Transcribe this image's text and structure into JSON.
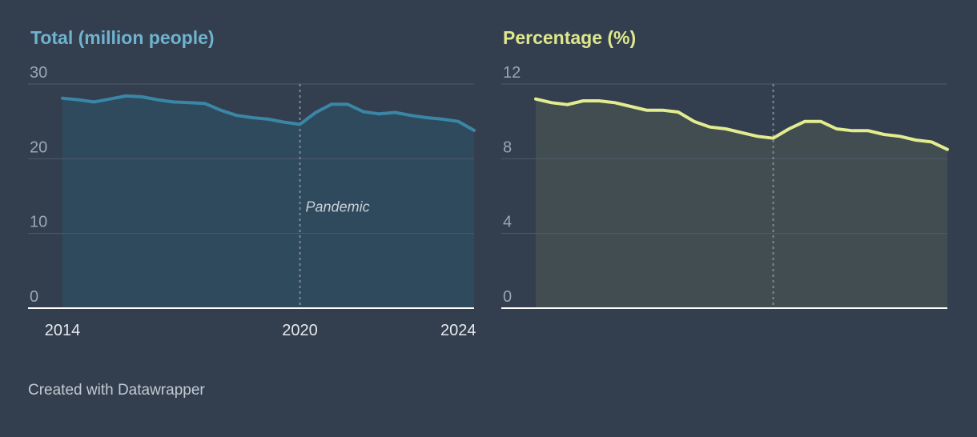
{
  "colors": {
    "background": "#333f4f",
    "gridline": "#4f5b6a",
    "baseline": "#ffffff",
    "annotation_line": "#7d8896"
  },
  "chart_data": [
    {
      "type": "area",
      "title": "Total (million people)",
      "title_color": "#6fb3cf",
      "line_color": "#3a86a6",
      "area_color": "#2f4a5d",
      "x": [
        2014,
        2014.4,
        2014.8,
        2015.2,
        2015.6,
        2016,
        2016.4,
        2016.8,
        2017.2,
        2017.6,
        2018,
        2018.4,
        2018.8,
        2019.2,
        2019.6,
        2020,
        2020.4,
        2020.8,
        2021.2,
        2021.6,
        2022,
        2022.4,
        2022.8,
        2023.2,
        2023.6,
        2024,
        2024.4
      ],
      "y": [
        28.1,
        27.9,
        27.6,
        28.0,
        28.4,
        28.3,
        27.9,
        27.6,
        27.5,
        27.4,
        26.5,
        25.8,
        25.5,
        25.3,
        24.9,
        24.6,
        26.2,
        27.3,
        27.3,
        26.3,
        26.0,
        26.2,
        25.8,
        25.5,
        25.3,
        25.0,
        23.8
      ],
      "xlim": [
        2014,
        2024.4
      ],
      "ylim": [
        0,
        30
      ],
      "yticks": [
        {
          "value": 0,
          "label": "0"
        },
        {
          "value": 10,
          "label": "10"
        },
        {
          "value": 20,
          "label": "20"
        },
        {
          "value": 30,
          "label": "30"
        }
      ],
      "xticks": [
        {
          "value": 2014,
          "label": "2014"
        },
        {
          "value": 2020,
          "label": "2020"
        },
        {
          "value": 2024,
          "label": "2024"
        }
      ],
      "annotation": {
        "x": 2020,
        "label": "Pandemic"
      }
    },
    {
      "type": "area",
      "title": "Percentage (%)",
      "title_color": "#dfe88c",
      "line_color": "#e3ec8e",
      "area_color": "#414d51",
      "x": [
        2014,
        2014.4,
        2014.8,
        2015.2,
        2015.6,
        2016,
        2016.4,
        2016.8,
        2017.2,
        2017.6,
        2018,
        2018.4,
        2018.8,
        2019.2,
        2019.6,
        2020,
        2020.4,
        2020.8,
        2021.2,
        2021.6,
        2022,
        2022.4,
        2022.8,
        2023.2,
        2023.6,
        2024,
        2024.4
      ],
      "y": [
        11.2,
        11.0,
        10.9,
        11.1,
        11.1,
        11.0,
        10.8,
        10.6,
        10.6,
        10.5,
        10.0,
        9.7,
        9.6,
        9.4,
        9.2,
        9.1,
        9.6,
        10.0,
        10.0,
        9.6,
        9.5,
        9.5,
        9.3,
        9.2,
        9.0,
        8.9,
        8.5
      ],
      "xlim": [
        2014,
        2024.4
      ],
      "ylim": [
        0,
        12
      ],
      "yticks": [
        {
          "value": 0,
          "label": "0"
        },
        {
          "value": 4,
          "label": "4"
        },
        {
          "value": 8,
          "label": "8"
        },
        {
          "value": 12,
          "label": "12"
        }
      ],
      "xticks": [],
      "annotation": {
        "x": 2020,
        "label": ""
      }
    }
  ],
  "footer": "Created with Datawrapper"
}
